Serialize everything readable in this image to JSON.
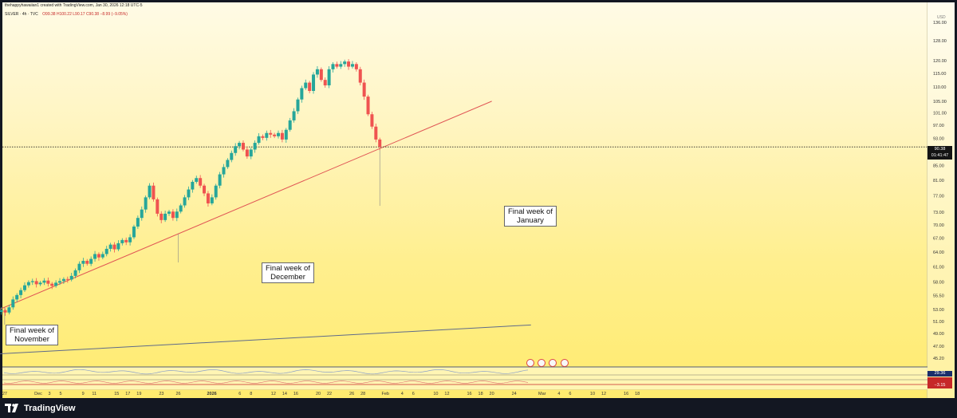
{
  "header": {
    "author_line": "thehappyhawaiian1 created with TradingView.com, Jan 30, 2026 12:18 UTC-5",
    "symbol": "SILVER · 4h · TVC",
    "ohlc": "O99.38 H100.22 L90.17 C90.38 −8.99 (−9.05%)"
  },
  "currency": "USD",
  "last_price": {
    "price": "90.38",
    "countdown": "01:41:47"
  },
  "indicator_badges": [
    {
      "value": "29.36",
      "color": "#1a2e6b"
    },
    {
      "value": "",
      "color": "#c62828"
    },
    {
      "value": "−3.15",
      "color": "#c62828"
    }
  ],
  "callouts": {
    "november": "Final week of\nNovember",
    "december": "Final week of\nDecember",
    "january": "Final week of\nJanuary"
  },
  "footer": {
    "brand": "TradingView"
  },
  "colors": {
    "up": "#26a69a",
    "down": "#ef5350",
    "trendline": "#e05454",
    "support_line": "#5e6a8a",
    "price_line": "#222222"
  },
  "chart_data": {
    "type": "candlestick",
    "symbol": "SILVER",
    "interval": "4h",
    "y_scale": "log",
    "price_ticks": [
      136.0,
      128.0,
      120.0,
      115.0,
      110.0,
      105.0,
      101.0,
      97.0,
      93.0,
      85.0,
      81.0,
      77.0,
      73.0,
      70.0,
      67.0,
      64.0,
      61.0,
      58.0,
      55.5,
      53.0,
      51.0,
      49.0,
      47.0,
      45.2
    ],
    "x_ticks": [
      "27",
      "Dec",
      "3",
      "5",
      "9",
      "11",
      "15",
      "17",
      "19",
      "23",
      "26",
      "2026",
      "6",
      "8",
      "12",
      "14",
      "16",
      "20",
      "22",
      "26",
      "28",
      "Feb",
      "4",
      "6",
      "10",
      "12",
      "16",
      "18",
      "20",
      "24",
      "Mar",
      "4",
      "6",
      "10",
      "12",
      "16",
      "18"
    ],
    "x_tick_days": [
      -5,
      1,
      3,
      5,
      9,
      11,
      15,
      17,
      19,
      23,
      26,
      32,
      37,
      39,
      43,
      45,
      47,
      51,
      53,
      57,
      59,
      63,
      66,
      68,
      72,
      74,
      78,
      80,
      82,
      86,
      91,
      94,
      96,
      100,
      102,
      106,
      108
    ],
    "days_per_tick": "day index 1 = Dec 1, 2025",
    "closes": [
      52.0,
      52.6,
      52.9,
      52.5,
      53.4,
      54.8,
      55.6,
      56.5,
      57.4,
      58.0,
      58.2,
      57.6,
      57.9,
      58.3,
      57.7,
      57.3,
      57.9,
      58.2,
      58.6,
      58.5,
      59.2,
      60.3,
      61.6,
      62.2,
      61.6,
      62.6,
      63.6,
      62.9,
      63.6,
      64.7,
      65.6,
      64.6,
      65.9,
      66.6,
      66.1,
      67.2,
      69.6,
      71.6,
      73.6,
      76.6,
      79.6,
      76.1,
      72.6,
      71.1,
      72.6,
      73.1,
      71.6,
      73.1,
      74.6,
      76.6,
      78.6,
      80.6,
      81.6,
      79.6,
      77.6,
      75.1,
      76.6,
      79.6,
      82.6,
      84.6,
      86.6,
      88.6,
      90.6,
      91.6,
      89.6,
      87.6,
      89.6,
      91.6,
      93.6,
      93.1,
      94.6,
      94.1,
      93.6,
      94.6,
      92.6,
      95.6,
      98.6,
      101.6,
      105.6,
      109.6,
      111.6,
      108.6,
      114.6,
      116.6,
      112.6,
      110.6,
      116.6,
      118.6,
      117.6,
      118.6,
      119.6,
      117.6,
      118.6,
      116.6,
      111.6,
      106.6,
      100.6,
      96.6,
      92.6,
      90.38
    ],
    "closes_start_day": -7,
    "closes_end_day": 62,
    "trendline": {
      "from": {
        "day": -7,
        "price": 52.6
      },
      "to": {
        "day": 82,
        "price": 105.0
      }
    },
    "support_line": {
      "from": {
        "day": -7,
        "price": 45.8
      },
      "to": {
        "day": 89,
        "price": 50.4
      }
    },
    "last_price": 90.38,
    "annotations": [
      {
        "text": "Final week of November",
        "day": -5
      },
      {
        "text": "Final week of December",
        "day": 26
      },
      {
        "text": "Final week of January",
        "day": 62
      }
    ]
  }
}
